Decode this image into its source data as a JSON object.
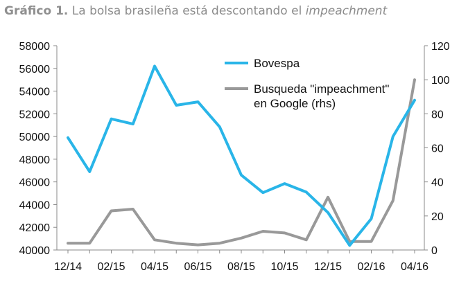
{
  "title": {
    "label": "Gráfico 1.",
    "text": " La bolsa brasileña está descontando el ",
    "emphasis": "impeachment"
  },
  "chart_data": {
    "type": "line",
    "x_tick_labels": [
      "12/14",
      "02/15",
      "04/15",
      "06/15",
      "08/15",
      "10/15",
      "12/15",
      "02/16",
      "04/16"
    ],
    "y_left": {
      "min": 40000,
      "max": 58000,
      "step": 2000
    },
    "y_right": {
      "min": 0,
      "max": 120,
      "step": 20
    },
    "series": [
      {
        "name": "Bovespa",
        "axis": "left",
        "color": "#29b5e8",
        "values": [
          49900,
          46900,
          51550,
          51100,
          56200,
          52750,
          53050,
          50850,
          46600,
          45050,
          45850,
          45100,
          43300,
          40400,
          42750,
          50000,
          53200
        ]
      },
      {
        "name": "Busqueda \"impeachment\" en Google (rhs)",
        "name_lines": [
          "Busqueda \"impeachment\"",
          "en Google (rhs)"
        ],
        "axis": "right",
        "color": "#999999",
        "values": [
          4,
          4,
          23,
          24,
          6,
          4,
          3,
          4,
          7,
          11,
          10,
          6,
          31,
          5,
          5,
          29,
          100
        ]
      }
    ],
    "legend_position": "top-right",
    "grid": false
  }
}
